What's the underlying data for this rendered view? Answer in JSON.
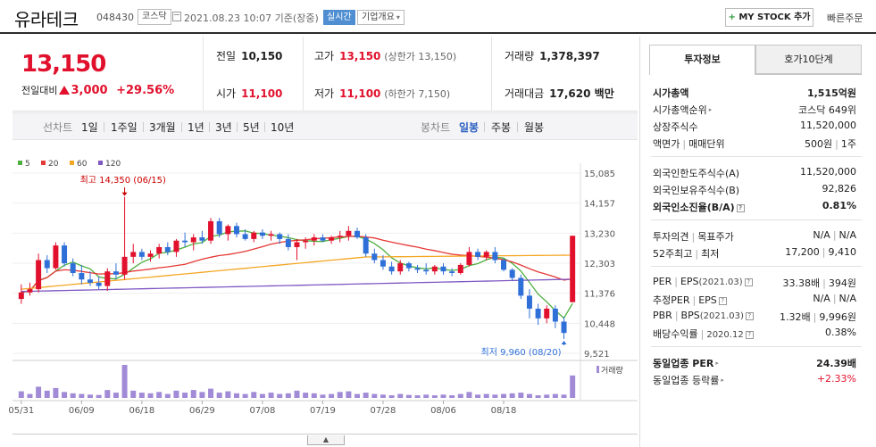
{
  "header": {
    "name": "유라테크",
    "code": "048430",
    "market": "코스닥",
    "datetime": "2021.08.23 10:07 기준(장중)",
    "realtime": "실시간",
    "company_overview": "기업개요",
    "mystock": "MY STOCK 추가",
    "quick_order": "빠른주문"
  },
  "price": {
    "current": "13,150",
    "change_label": "전일대비",
    "change": "3,000",
    "change_rate": "+29.56%",
    "prev_label": "전일",
    "prev": "10,150",
    "open_label": "시가",
    "open": "11,100",
    "high_label": "고가",
    "high": "13,150",
    "high_sub": "(상한가 13,150)",
    "low_label": "저가",
    "low": "11,100",
    "low_sub": "(하한가 7,150)",
    "volume_label": "거래량",
    "volume": "1,378,397",
    "amount_label": "거래대금",
    "amount": "17,620 백만"
  },
  "period_bar": {
    "line_label": "선차트",
    "line_periods": [
      "1일",
      "1주일",
      "3개월",
      "1년",
      "3년",
      "5년",
      "10년"
    ],
    "candle_label": "봉차트",
    "candle_periods": [
      "일봉",
      "주봉",
      "월봉"
    ],
    "selected": "일봉"
  },
  "side": {
    "tab_info": "투자정보",
    "tab_order": "호가10단계",
    "rows": {
      "market_cap": {
        "k": "시가총액",
        "v": "1,515억원"
      },
      "market_cap_rank": {
        "k": "시가총액순위",
        "v": "코스닥 649위"
      },
      "shares": {
        "k": "상장주식수",
        "v": "11,520,000"
      },
      "par": {
        "k": "액면가",
        "k2": "매매단위",
        "v": "500원",
        "v2": "1주"
      },
      "foreign_limit": {
        "k": "외국인한도주식수(A)",
        "v": "11,520,000"
      },
      "foreign_hold": {
        "k": "외국인보유주식수(B)",
        "v": "92,826"
      },
      "foreign_rate": {
        "k": "외국인소진율(B/A)",
        "v": "0.81%"
      },
      "opinion": {
        "k": "투자의견",
        "k2": "목표주가",
        "v": "N/A",
        "v2": "N/A"
      },
      "w52": {
        "k": "52주최고",
        "k2": "최저",
        "v": "17,200",
        "v2": "9,410"
      },
      "per": {
        "k": "PER",
        "k2": "EPS",
        "k3": "(2021.03)",
        "v": "33.38배",
        "v2": "394원"
      },
      "est_per": {
        "k": "추정PER",
        "k2": "EPS",
        "v": "N/A",
        "v2": "N/A"
      },
      "pbr": {
        "k": "PBR",
        "k2": "BPS",
        "k3": "(2021.03)",
        "v": "1.32배",
        "v2": "9,996원"
      },
      "dividend": {
        "k": "배당수익률",
        "k2": "2020.12",
        "v": "0.38%"
      },
      "sector_per": {
        "k": "동일업종 PER",
        "v": "24.39배"
      },
      "sector_rate": {
        "k": "동일업종 등락률",
        "v": "+2.33%"
      }
    }
  },
  "chart_data": {
    "type": "candlestick",
    "ma_legend": [
      {
        "name": "5",
        "color": "#4caf3e"
      },
      {
        "name": "20",
        "color": "#e53935"
      },
      {
        "name": "60",
        "color": "#f5a623"
      },
      {
        "name": "120",
        "color": "#7e57c2"
      }
    ],
    "up_color": "#e1112d",
    "down_color": "#2f6fd8",
    "y_ticks": [
      "15,085",
      "14,157",
      "13,230",
      "12,303",
      "11,376",
      "10,448",
      "9,521"
    ],
    "y_range": [
      9521,
      15085
    ],
    "x_labels": [
      {
        "label": "05/31",
        "index": 0
      },
      {
        "label": "06/09",
        "index": 7
      },
      {
        "label": "06/18",
        "index": 14
      },
      {
        "label": "06/29",
        "index": 21
      },
      {
        "label": "07/08",
        "index": 28
      },
      {
        "label": "07/19",
        "index": 35
      },
      {
        "label": "07/28",
        "index": 42
      },
      {
        "label": "08/06",
        "index": 49
      },
      {
        "label": "08/18",
        "index": 56
      }
    ],
    "high_annotation": "최고 14,350 (06/15)",
    "low_annotation": "최저 9,960 (08/20)",
    "volume_label": "거래량",
    "candles": [
      [
        11200,
        11650,
        11050,
        11400
      ],
      [
        11400,
        11700,
        11300,
        11500
      ],
      [
        11500,
        12600,
        11400,
        12400
      ],
      [
        12400,
        12550,
        12000,
        12150
      ],
      [
        12150,
        12950,
        12100,
        12850
      ],
      [
        12850,
        12950,
        12200,
        12300
      ],
      [
        12300,
        12450,
        11900,
        12000
      ],
      [
        12000,
        12250,
        11650,
        11800
      ],
      [
        11800,
        12050,
        11600,
        11700
      ],
      [
        11700,
        11900,
        11500,
        11600
      ],
      [
        11600,
        12150,
        11450,
        12050
      ],
      [
        12050,
        12300,
        11800,
        11950
      ],
      [
        11950,
        14350,
        11800,
        12500
      ],
      [
        12500,
        12900,
        12300,
        12650
      ],
      [
        12650,
        12750,
        12400,
        12500
      ],
      [
        12500,
        12700,
        12350,
        12600
      ],
      [
        12600,
        12900,
        12450,
        12800
      ],
      [
        12800,
        12950,
        12550,
        12650
      ],
      [
        12650,
        13050,
        12500,
        13000
      ],
      [
        13000,
        13250,
        12800,
        12950
      ],
      [
        12950,
        13200,
        12700,
        13100
      ],
      [
        13100,
        13300,
        12900,
        13000
      ],
      [
        13000,
        13700,
        12900,
        13600
      ],
      [
        13600,
        13700,
        13100,
        13200
      ],
      [
        13200,
        13500,
        13000,
        13450
      ],
      [
        13450,
        13550,
        13100,
        13200
      ],
      [
        13200,
        13350,
        13000,
        13050
      ],
      [
        13050,
        13300,
        12950,
        13250
      ],
      [
        13250,
        13350,
        13050,
        13150
      ],
      [
        13150,
        13300,
        13000,
        13200
      ],
      [
        13200,
        13250,
        12900,
        13050
      ],
      [
        13050,
        13200,
        12700,
        12800
      ],
      [
        12800,
        13050,
        12400,
        12950
      ],
      [
        12950,
        13100,
        12750,
        13000
      ],
      [
        13000,
        13200,
        12850,
        13100
      ],
      [
        13100,
        13200,
        12950,
        13000
      ],
      [
        13000,
        13150,
        12900,
        13100
      ],
      [
        13100,
        13300,
        12950,
        13150
      ],
      [
        13150,
        13450,
        13000,
        13300
      ],
      [
        13300,
        13400,
        13050,
        13100
      ],
      [
        13100,
        13200,
        12500,
        12600
      ],
      [
        12600,
        12750,
        12300,
        12400
      ],
      [
        12400,
        12550,
        12100,
        12200
      ],
      [
        12200,
        12350,
        11950,
        12050
      ],
      [
        12050,
        12400,
        11950,
        12300
      ],
      [
        12300,
        12350,
        12050,
        12150
      ],
      [
        12150,
        12250,
        12000,
        12100
      ],
      [
        12100,
        12300,
        11950,
        12050
      ],
      [
        12050,
        12250,
        11950,
        12200
      ],
      [
        12200,
        12300,
        11950,
        12050
      ],
      [
        12050,
        12150,
        11900,
        12000
      ],
      [
        12000,
        12300,
        11950,
        12250
      ],
      [
        12250,
        12800,
        12200,
        12650
      ],
      [
        12650,
        12750,
        12400,
        12500
      ],
      [
        12500,
        12700,
        12400,
        12650
      ],
      [
        12650,
        12800,
        12300,
        12400
      ],
      [
        12400,
        12450,
        12050,
        12100
      ],
      [
        12100,
        12150,
        11750,
        11850
      ],
      [
        11850,
        11950,
        11200,
        11300
      ],
      [
        11300,
        11500,
        10600,
        10900
      ],
      [
        10900,
        11050,
        10400,
        10600
      ],
      [
        10600,
        11000,
        10450,
        10900
      ],
      [
        10900,
        11000,
        10300,
        10500
      ],
      [
        10500,
        10650,
        9960,
        10150
      ],
      [
        11100,
        13150,
        11100,
        13150
      ]
    ],
    "volumes": [
      20,
      12,
      34,
      22,
      30,
      18,
      14,
      12,
      10,
      9,
      24,
      16,
      100,
      22,
      16,
      14,
      18,
      12,
      22,
      16,
      24,
      18,
      28,
      16,
      20,
      14,
      12,
      18,
      12,
      16,
      12,
      14,
      22,
      16,
      14,
      10,
      12,
      18,
      20,
      12,
      16,
      12,
      10,
      8,
      12,
      9,
      8,
      10,
      8,
      10,
      8,
      12,
      18,
      10,
      12,
      10,
      12,
      14,
      16,
      12,
      8,
      10,
      12,
      10,
      68
    ]
  }
}
